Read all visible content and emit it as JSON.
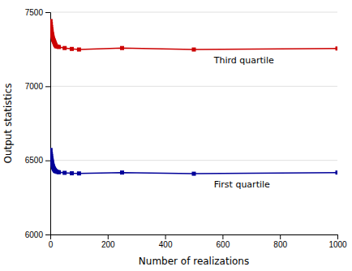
{
  "chart_data": {
    "type": "line",
    "xlabel": "Number of realizations",
    "ylabel": "Output statistics",
    "x": [
      1,
      2,
      3,
      4,
      5,
      6,
      7,
      8,
      9,
      10,
      11,
      12,
      13,
      14,
      15,
      16,
      17,
      18,
      20,
      25,
      30,
      50,
      75,
      100,
      250,
      500,
      1000
    ],
    "series": [
      {
        "name": "Third quartile",
        "color": "#cc0000",
        "marker": "square",
        "values": [
          7440,
          7420,
          7400,
          7385,
          7370,
          7355,
          7345,
          7335,
          7325,
          7318,
          7312,
          7308,
          7302,
          7298,
          7292,
          7288,
          7282,
          7278,
          7270,
          7268,
          7265,
          7258,
          7252,
          7248,
          7258,
          7248,
          7255
        ]
      },
      {
        "name": "First quartile",
        "color": "#000099",
        "marker": "square",
        "values": [
          6570,
          6545,
          6530,
          6515,
          6502,
          6492,
          6480,
          6470,
          6462,
          6455,
          6450,
          6445,
          6442,
          6438,
          6435,
          6432,
          6430,
          6428,
          6426,
          6422,
          6420,
          6416,
          6413,
          6412,
          6418,
          6410,
          6418
        ]
      }
    ],
    "xlim": [
      0,
      1000
    ],
    "ylim": [
      6000,
      7500
    ],
    "xticks": [
      0,
      200,
      400,
      600,
      800,
      1000
    ],
    "yticks": [
      6000,
      6500,
      7000,
      7500
    ],
    "grid": true
  }
}
